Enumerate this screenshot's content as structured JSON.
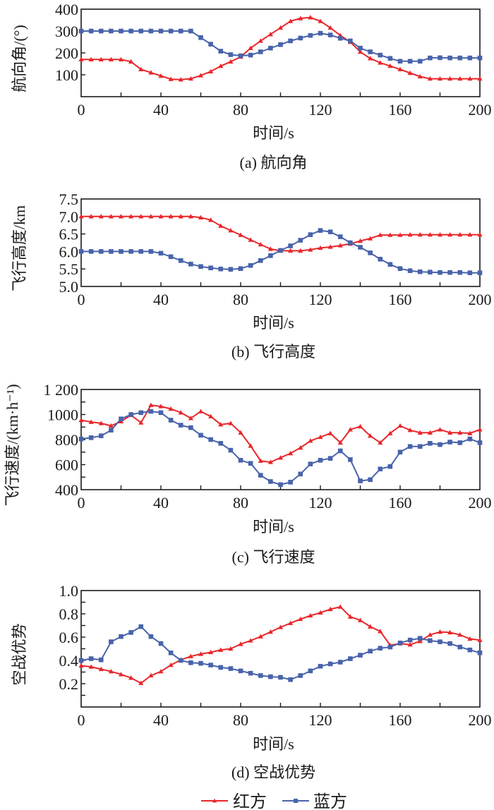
{
  "colors": {
    "red": "#E8262A",
    "blue": "#4863AA",
    "axis": "#1a1a1a"
  },
  "legend": [
    {
      "name": "红方",
      "color_key": "red",
      "marker": "triangle"
    },
    {
      "name": "蓝方",
      "color_key": "blue",
      "marker": "square"
    }
  ],
  "chart_data": [
    {
      "type": "line",
      "id": "a",
      "title": "(a) 航向角",
      "xlabel": "时间/s",
      "ylabel": "航向角/(°)",
      "xlim": [
        0,
        200
      ],
      "ylim": [
        0,
        400
      ],
      "xticks": [
        0,
        40,
        80,
        120,
        160,
        200
      ],
      "xtick_labels": [
        "0",
        "40",
        "80",
        "120",
        "160",
        "200"
      ],
      "yticks": [
        100,
        200,
        300,
        400
      ],
      "ytick_labels": [
        "100",
        "200",
        "300",
        "400"
      ],
      "minor_xtick_step": 20,
      "minor_ytick_step": 100,
      "x": [
        0,
        5,
        10,
        15,
        20,
        25,
        30,
        35,
        40,
        45,
        50,
        55,
        60,
        65,
        70,
        75,
        80,
        85,
        90,
        95,
        100,
        105,
        110,
        115,
        120,
        125,
        130,
        135,
        140,
        145,
        150,
        155,
        160,
        165,
        170,
        175,
        180,
        185,
        190,
        195,
        200
      ],
      "series": [
        {
          "name": "红方",
          "values": [
            170,
            170,
            170,
            170,
            170,
            160,
            125,
            110,
            95,
            80,
            78,
            82,
            97,
            115,
            140,
            160,
            182,
            222,
            255,
            285,
            315,
            345,
            358,
            362,
            345,
            315,
            280,
            250,
            205,
            175,
            155,
            140,
            125,
            108,
            92,
            82,
            82,
            82,
            82,
            82,
            82
          ]
        },
        {
          "name": "蓝方",
          "values": [
            300,
            300,
            300,
            300,
            300,
            300,
            300,
            300,
            300,
            300,
            300,
            300,
            270,
            240,
            208,
            192,
            187,
            190,
            205,
            222,
            238,
            255,
            268,
            280,
            290,
            282,
            267,
            255,
            222,
            205,
            190,
            175,
            162,
            162,
            162,
            177,
            178,
            177,
            177,
            177,
            177
          ]
        }
      ]
    },
    {
      "type": "line",
      "id": "b",
      "title": "(b) 飞行高度",
      "xlabel": "时间/s",
      "ylabel": "飞行高度/km",
      "xlim": [
        0,
        200
      ],
      "ylim": [
        5.0,
        7.5
      ],
      "xticks": [
        0,
        40,
        80,
        120,
        160,
        200
      ],
      "xtick_labels": [
        "0",
        "40",
        "80",
        "120",
        "160",
        "200"
      ],
      "yticks": [
        5.0,
        5.5,
        6.0,
        6.5,
        7.0,
        7.5
      ],
      "ytick_labels": [
        "5.0",
        "5.5",
        "6.0",
        "6.5",
        "7.0",
        "7.5"
      ],
      "minor_xtick_step": 20,
      "minor_ytick_step": 0.5,
      "x": [
        0,
        5,
        10,
        15,
        20,
        25,
        30,
        35,
        40,
        45,
        50,
        55,
        60,
        65,
        70,
        75,
        80,
        85,
        90,
        95,
        100,
        105,
        110,
        115,
        120,
        125,
        130,
        135,
        140,
        145,
        150,
        155,
        160,
        165,
        170,
        175,
        180,
        185,
        190,
        195,
        200
      ],
      "series": [
        {
          "name": "红方",
          "values": [
            7.0,
            7.0,
            7.0,
            7.0,
            7.0,
            7.0,
            7.0,
            7.0,
            7.0,
            7.0,
            7.0,
            7.0,
            6.97,
            6.9,
            6.73,
            6.6,
            6.47,
            6.33,
            6.2,
            6.07,
            6.02,
            6.02,
            6.02,
            6.05,
            6.1,
            6.13,
            6.17,
            6.22,
            6.3,
            6.37,
            6.47,
            6.47,
            6.47,
            6.48,
            6.48,
            6.48,
            6.48,
            6.48,
            6.48,
            6.48,
            6.48
          ]
        },
        {
          "name": "蓝方",
          "values": [
            6.0,
            6.0,
            6.0,
            6.0,
            6.0,
            6.0,
            6.0,
            6.0,
            5.95,
            5.85,
            5.74,
            5.64,
            5.57,
            5.53,
            5.5,
            5.49,
            5.51,
            5.6,
            5.74,
            5.88,
            6.03,
            6.16,
            6.32,
            6.48,
            6.6,
            6.56,
            6.42,
            6.25,
            6.12,
            5.96,
            5.78,
            5.63,
            5.51,
            5.45,
            5.42,
            5.41,
            5.4,
            5.4,
            5.4,
            5.39,
            5.39
          ]
        }
      ]
    },
    {
      "type": "line",
      "id": "c",
      "title": "(c) 飞行速度",
      "xlabel": "时间/s",
      "ylabel": "飞行速度/(km·h⁻¹)",
      "xlim": [
        0,
        200
      ],
      "ylim": [
        400,
        1200
      ],
      "xticks": [
        0,
        40,
        80,
        120,
        160,
        200
      ],
      "xtick_labels": [
        "0",
        "40",
        "80",
        "120",
        "160",
        "200"
      ],
      "yticks": [
        400,
        600,
        800,
        1000,
        1200
      ],
      "ytick_labels": [
        "400",
        "600",
        "800",
        "1000",
        "1 200"
      ],
      "minor_xtick_step": 20,
      "minor_ytick_step": 100,
      "x": [
        0,
        5,
        10,
        15,
        20,
        25,
        30,
        35,
        40,
        45,
        50,
        55,
        60,
        65,
        70,
        75,
        80,
        85,
        90,
        95,
        100,
        105,
        110,
        115,
        120,
        125,
        130,
        135,
        140,
        145,
        150,
        155,
        160,
        165,
        170,
        175,
        180,
        185,
        190,
        195,
        200
      ],
      "series": [
        {
          "name": "红方",
          "values": [
            955,
            940,
            930,
            910,
            945,
            995,
            935,
            1075,
            1065,
            1045,
            1015,
            970,
            1025,
            985,
            920,
            930,
            855,
            750,
            630,
            620,
            655,
            690,
            735,
            790,
            820,
            850,
            775,
            880,
            905,
            830,
            775,
            850,
            910,
            875,
            855,
            855,
            880,
            855,
            855,
            850,
            880
          ]
        },
        {
          "name": "蓝方",
          "values": [
            805,
            815,
            830,
            875,
            965,
            1000,
            1015,
            1025,
            1015,
            955,
            915,
            895,
            835,
            800,
            770,
            715,
            635,
            610,
            515,
            465,
            440,
            460,
            525,
            605,
            635,
            650,
            710,
            640,
            470,
            480,
            565,
            585,
            700,
            745,
            745,
            770,
            760,
            780,
            775,
            805,
            775
          ]
        }
      ]
    },
    {
      "type": "line",
      "id": "d",
      "title": "(d) 空战优势",
      "xlabel": "时间/s",
      "ylabel": "空战优势",
      "xlim": [
        0,
        200
      ],
      "ylim": [
        0,
        1.0
      ],
      "xticks": [
        0,
        40,
        80,
        120,
        160,
        200
      ],
      "xtick_labels": [
        "0",
        "40",
        "80",
        "120",
        "160",
        "200"
      ],
      "yticks": [
        0.2,
        0.4,
        0.6,
        0.8,
        1.0
      ],
      "ytick_labels": [
        "0.2",
        "0.4",
        "0.6",
        "0.8",
        "1.0"
      ],
      "minor_xtick_step": 20,
      "minor_ytick_step": 0.1,
      "x": [
        0,
        5,
        10,
        15,
        20,
        25,
        30,
        35,
        40,
        45,
        50,
        55,
        60,
        65,
        70,
        75,
        80,
        85,
        90,
        95,
        100,
        105,
        110,
        115,
        120,
        125,
        130,
        135,
        140,
        145,
        150,
        155,
        160,
        165,
        170,
        175,
        180,
        185,
        190,
        195,
        200
      ],
      "series": [
        {
          "name": "红方",
          "values": [
            0.355,
            0.345,
            0.325,
            0.305,
            0.28,
            0.25,
            0.205,
            0.27,
            0.305,
            0.36,
            0.405,
            0.435,
            0.455,
            0.47,
            0.49,
            0.5,
            0.54,
            0.57,
            0.605,
            0.645,
            0.685,
            0.72,
            0.755,
            0.785,
            0.81,
            0.84,
            0.86,
            0.775,
            0.745,
            0.69,
            0.65,
            0.53,
            0.545,
            0.535,
            0.565,
            0.62,
            0.645,
            0.64,
            0.62,
            0.585,
            0.575
          ]
        },
        {
          "name": "蓝方",
          "values": [
            0.4,
            0.415,
            0.405,
            0.56,
            0.605,
            0.64,
            0.69,
            0.605,
            0.545,
            0.465,
            0.4,
            0.38,
            0.375,
            0.36,
            0.34,
            0.33,
            0.31,
            0.29,
            0.27,
            0.26,
            0.255,
            0.235,
            0.27,
            0.31,
            0.35,
            0.37,
            0.385,
            0.415,
            0.445,
            0.48,
            0.505,
            0.515,
            0.55,
            0.575,
            0.59,
            0.57,
            0.56,
            0.545,
            0.515,
            0.49,
            0.465
          ]
        }
      ]
    }
  ]
}
